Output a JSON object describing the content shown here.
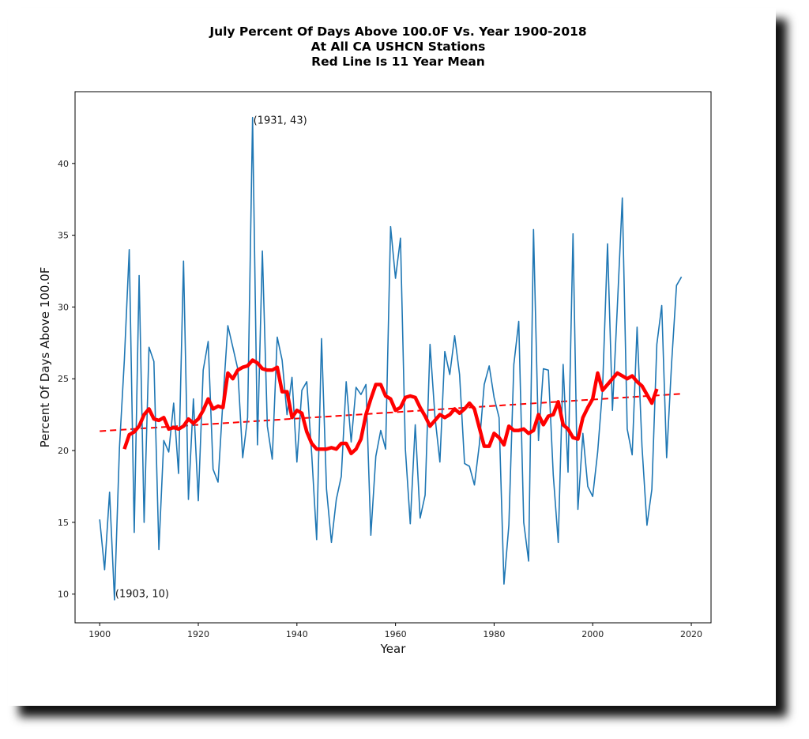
{
  "chart_data": {
    "type": "line",
    "title": "July Percent Of Days Above 100.0F Vs. Year 1900-2018",
    "subtitle_lines": [
      "At All CA USHCN Stations",
      "Red Line Is 11 Year Mean"
    ],
    "xlabel": "Year",
    "ylabel": "Percent Of Days Above 100.0F",
    "xlim": [
      1895,
      2024
    ],
    "ylim": [
      8,
      45
    ],
    "x_ticks": [
      1900,
      1920,
      1940,
      1960,
      1980,
      2000,
      2020
    ],
    "y_ticks": [
      10,
      15,
      20,
      25,
      30,
      35,
      40
    ],
    "grid": false,
    "legend": "none",
    "colors": {
      "series": "#1f77b4",
      "mean": "#ff0000",
      "trend": "#ff0000"
    },
    "series": [
      {
        "name": "July percent of days above 100.0F",
        "style": "solid-thin",
        "x_start": 1900,
        "values": [
          15.2,
          11.7,
          17.1,
          9.6,
          20.2,
          26.3,
          34.0,
          14.3,
          32.2,
          15.0,
          27.2,
          26.2,
          13.1,
          20.7,
          19.9,
          23.3,
          18.4,
          33.2,
          16.6,
          23.6,
          16.5,
          25.6,
          27.6,
          18.7,
          17.8,
          23.5,
          28.7,
          27.2,
          25.7,
          19.5,
          22.3,
          43.2,
          20.4,
          33.9,
          21.7,
          19.4,
          27.9,
          26.3,
          22.5,
          25.1,
          19.2,
          24.2,
          24.8,
          19.8,
          13.8,
          27.8,
          17.3,
          13.6,
          16.6,
          18.2,
          24.8,
          20.6,
          24.4,
          23.9,
          24.6,
          14.1,
          19.6,
          21.4,
          20.1,
          35.6,
          32.0,
          34.8,
          20.1,
          14.9,
          21.8,
          15.3,
          16.9,
          27.4,
          22.4,
          19.2,
          26.9,
          25.3,
          28.0,
          25.3,
          19.1,
          18.9,
          17.6,
          20.4,
          24.6,
          25.9,
          23.7,
          22.3,
          10.7,
          14.8,
          26.0,
          29.0,
          15.0,
          12.3,
          35.4,
          20.7,
          25.7,
          25.6,
          18.3,
          13.6,
          26.0,
          18.5,
          35.1,
          15.9,
          21.2,
          17.5,
          16.8,
          19.9,
          24.3,
          34.4,
          22.8,
          30.0,
          37.6,
          21.5,
          19.7,
          28.6,
          20.3,
          14.8,
          17.3,
          27.4,
          30.1,
          19.5,
          26.1,
          31.5,
          32.1
        ]
      },
      {
        "name": "11 Year Mean",
        "style": "solid-thick",
        "x_start": 1905,
        "values": [
          20.1,
          21.1,
          21.3,
          21.7,
          22.5,
          22.9,
          22.2,
          22.1,
          22.3,
          21.5,
          21.6,
          21.5,
          21.7,
          22.2,
          21.9,
          22.2,
          22.8,
          23.6,
          22.9,
          23.1,
          23.0,
          25.4,
          25.0,
          25.6,
          25.8,
          25.9,
          26.3,
          26.1,
          25.7,
          25.6,
          25.6,
          25.8,
          24.1,
          24.1,
          22.3,
          22.8,
          22.6,
          21.3,
          20.5,
          20.1,
          20.1,
          20.1,
          20.2,
          20.1,
          20.5,
          20.5,
          19.8,
          20.1,
          20.8,
          22.5,
          23.6,
          24.6,
          24.6,
          23.8,
          23.6,
          22.8,
          23.0,
          23.7,
          23.8,
          23.7,
          23.0,
          22.4,
          21.7,
          22.1,
          22.5,
          22.3,
          22.5,
          22.9,
          22.6,
          22.9,
          23.3,
          22.9,
          21.6,
          20.3,
          20.3,
          21.2,
          20.9,
          20.4,
          21.7,
          21.4,
          21.4,
          21.5,
          21.2,
          21.4,
          22.5,
          21.8,
          22.4,
          22.5,
          23.4,
          21.8,
          21.5,
          20.9,
          20.8,
          22.3,
          23.0,
          23.6,
          25.4,
          24.2,
          24.6,
          25.0,
          25.4,
          25.2,
          25.0,
          25.2,
          24.8,
          24.5,
          23.9,
          23.3,
          24.3
        ]
      },
      {
        "name": "Linear trend",
        "style": "dashed",
        "x": [
          1900,
          2018
        ],
        "values": [
          21.35,
          23.95
        ]
      }
    ],
    "annotations": [
      {
        "text": "(1931, 43)",
        "x": 1931,
        "y": 43
      },
      {
        "text": "(1903, 10)",
        "x": 1903,
        "y": 10
      }
    ]
  }
}
